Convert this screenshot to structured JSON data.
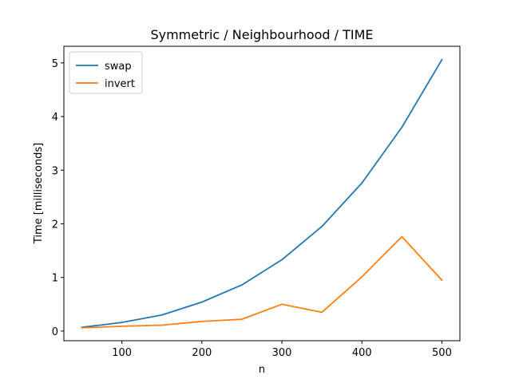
{
  "chart_data": {
    "type": "line",
    "title": "Symmetric / Neighbourhood / TIME",
    "xlabel": "n",
    "ylabel": "Time [milliseconds]",
    "x": [
      50,
      100,
      150,
      200,
      250,
      300,
      350,
      400,
      450,
      500
    ],
    "xlim": [
      27.5,
      522.5
    ],
    "ylim": [
      -0.18,
      5.31
    ],
    "xticks": [
      100,
      200,
      300,
      400,
      500
    ],
    "yticks": [
      0,
      1,
      2,
      3,
      4,
      5
    ],
    "xtick_labels": [
      "100",
      "200",
      "300",
      "400",
      "500"
    ],
    "ytick_labels": [
      "0",
      "1",
      "2",
      "3",
      "4",
      "5"
    ],
    "grid": false,
    "legend_position": "top-left",
    "series": [
      {
        "name": "swap",
        "color": "#1f77b4",
        "values": [
          0.07,
          0.16,
          0.3,
          0.54,
          0.86,
          1.33,
          1.95,
          2.76,
          3.8,
          5.06
        ]
      },
      {
        "name": "invert",
        "color": "#ff7f0e",
        "values": [
          0.06,
          0.09,
          0.11,
          0.18,
          0.22,
          0.5,
          0.35,
          1.01,
          1.76,
          0.95
        ]
      }
    ]
  }
}
